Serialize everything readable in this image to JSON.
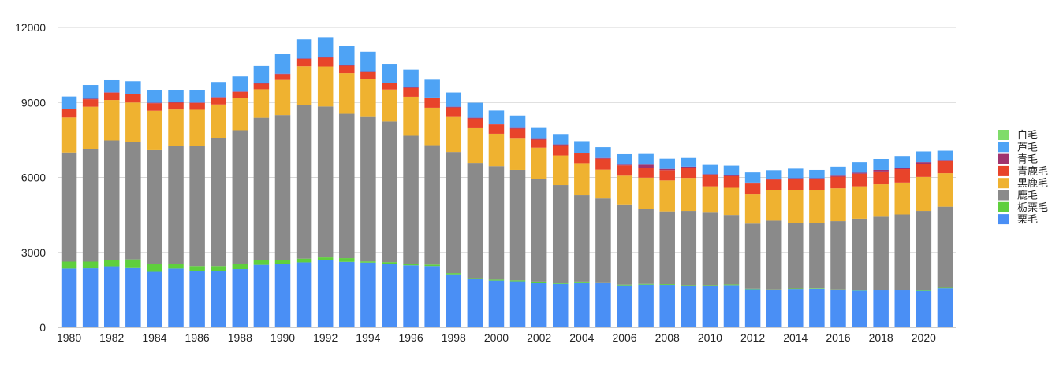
{
  "chart_data": {
    "type": "bar",
    "stacked": true,
    "title": "",
    "xlabel": "",
    "ylabel": "",
    "ylim": [
      0,
      12000
    ],
    "yticks": [
      0,
      3000,
      6000,
      9000,
      12000
    ],
    "grid": true,
    "legend_position": "right",
    "x": [
      1980,
      1981,
      1982,
      1983,
      1984,
      1985,
      1986,
      1987,
      1988,
      1989,
      1990,
      1991,
      1992,
      1993,
      1994,
      1995,
      1996,
      1997,
      1998,
      1999,
      2000,
      2001,
      2002,
      2003,
      2004,
      2005,
      2006,
      2007,
      2008,
      2009,
      2010,
      2011,
      2012,
      2013,
      2014,
      2015,
      2016,
      2017,
      2018,
      2019,
      2020,
      2021
    ],
    "xticks": [
      "1980",
      "1982",
      "1984",
      "1986",
      "1988",
      "1990",
      "1992",
      "1994",
      "1996",
      "1998",
      "2000",
      "2002",
      "2004",
      "2006",
      "2008",
      "2010",
      "2012",
      "2014",
      "2016",
      "2018",
      "2020"
    ],
    "series": [
      {
        "name": "栗毛",
        "color": "#4a8ff5",
        "values": [
          2350,
          2360,
          2440,
          2400,
          2220,
          2350,
          2250,
          2260,
          2330,
          2500,
          2530,
          2600,
          2680,
          2620,
          2590,
          2550,
          2480,
          2450,
          2120,
          1930,
          1870,
          1840,
          1790,
          1740,
          1800,
          1770,
          1680,
          1710,
          1700,
          1660,
          1660,
          1690,
          1530,
          1500,
          1540,
          1550,
          1500,
          1470,
          1480,
          1480,
          1460,
          1570
        ]
      },
      {
        "name": "栃栗毛",
        "color": "#5fcf3d",
        "values": [
          280,
          270,
          260,
          320,
          300,
          200,
          200,
          190,
          200,
          180,
          150,
          150,
          120,
          150,
          50,
          60,
          60,
          60,
          50,
          40,
          40,
          40,
          40,
          40,
          30,
          30,
          30,
          30,
          30,
          30,
          30,
          30,
          20,
          20,
          20,
          20,
          20,
          20,
          20,
          20,
          20,
          20
        ]
      },
      {
        "name": "鹿毛",
        "color": "#8a8a8a",
        "values": [
          4370,
          4520,
          4780,
          4690,
          4600,
          4700,
          4810,
          5130,
          5360,
          5710,
          5820,
          6150,
          6040,
          5780,
          5780,
          5630,
          5130,
          4780,
          4850,
          4610,
          4540,
          4420,
          4100,
          3920,
          3460,
          3360,
          3210,
          3000,
          2910,
          2970,
          2900,
          2780,
          2600,
          2750,
          2620,
          2610,
          2730,
          2860,
          2930,
          3020,
          3180,
          3240
        ]
      },
      {
        "name": "黒鹿毛",
        "color": "#efb230",
        "values": [
          1400,
          1680,
          1620,
          1590,
          1550,
          1470,
          1450,
          1340,
          1280,
          1140,
          1400,
          1550,
          1600,
          1620,
          1530,
          1280,
          1560,
          1500,
          1400,
          1390,
          1300,
          1250,
          1260,
          1180,
          1280,
          1150,
          1150,
          1250,
          1240,
          1320,
          1060,
          1090,
          1170,
          1220,
          1320,
          1300,
          1320,
          1300,
          1300,
          1280,
          1360,
          1340
        ]
      },
      {
        "name": "青鹿毛",
        "color": "#e8442a",
        "values": [
          330,
          300,
          290,
          330,
          300,
          270,
          270,
          280,
          250,
          220,
          230,
          290,
          350,
          300,
          280,
          250,
          350,
          380,
          380,
          390,
          370,
          400,
          320,
          410,
          390,
          440,
          410,
          400,
          410,
          400,
          440,
          460,
          440,
          420,
          440,
          460,
          460,
          500,
          510,
          530,
          530,
          490
        ]
      },
      {
        "name": "青毛",
        "color": "#a0336e",
        "values": [
          20,
          20,
          20,
          20,
          20,
          20,
          20,
          20,
          20,
          20,
          20,
          20,
          20,
          20,
          20,
          20,
          30,
          30,
          30,
          30,
          30,
          30,
          30,
          30,
          30,
          30,
          30,
          120,
          50,
          50,
          40,
          40,
          40,
          30,
          30,
          30,
          40,
          40,
          60,
          40,
          60,
          40
        ]
      },
      {
        "name": "芦毛",
        "color": "#4ea3f5",
        "values": [
          490,
          550,
          480,
          500,
          510,
          490,
          500,
          600,
          600,
          690,
          810,
          760,
          800,
          780,
          780,
          760,
          700,
          710,
          570,
          600,
          530,
          500,
          440,
          420,
          460,
          430,
          420,
          430,
          410,
          350,
          370,
          380,
          400,
          350,
          380,
          330,
          360,
          420,
          440,
          490,
          430,
          370
        ]
      },
      {
        "name": "白毛",
        "color": "#7fdc6a",
        "values": [
          0,
          0,
          0,
          0,
          0,
          0,
          0,
          0,
          0,
          0,
          0,
          0,
          0,
          0,
          0,
          0,
          0,
          0,
          0,
          0,
          0,
          0,
          0,
          0,
          0,
          0,
          0,
          0,
          0,
          0,
          0,
          0,
          0,
          0,
          0,
          0,
          0,
          0,
          0,
          0,
          0,
          0
        ]
      }
    ],
    "legend_order": [
      "白毛",
      "芦毛",
      "青毛",
      "青鹿毛",
      "黒鹿毛",
      "鹿毛",
      "栃栗毛",
      "栗毛"
    ]
  }
}
